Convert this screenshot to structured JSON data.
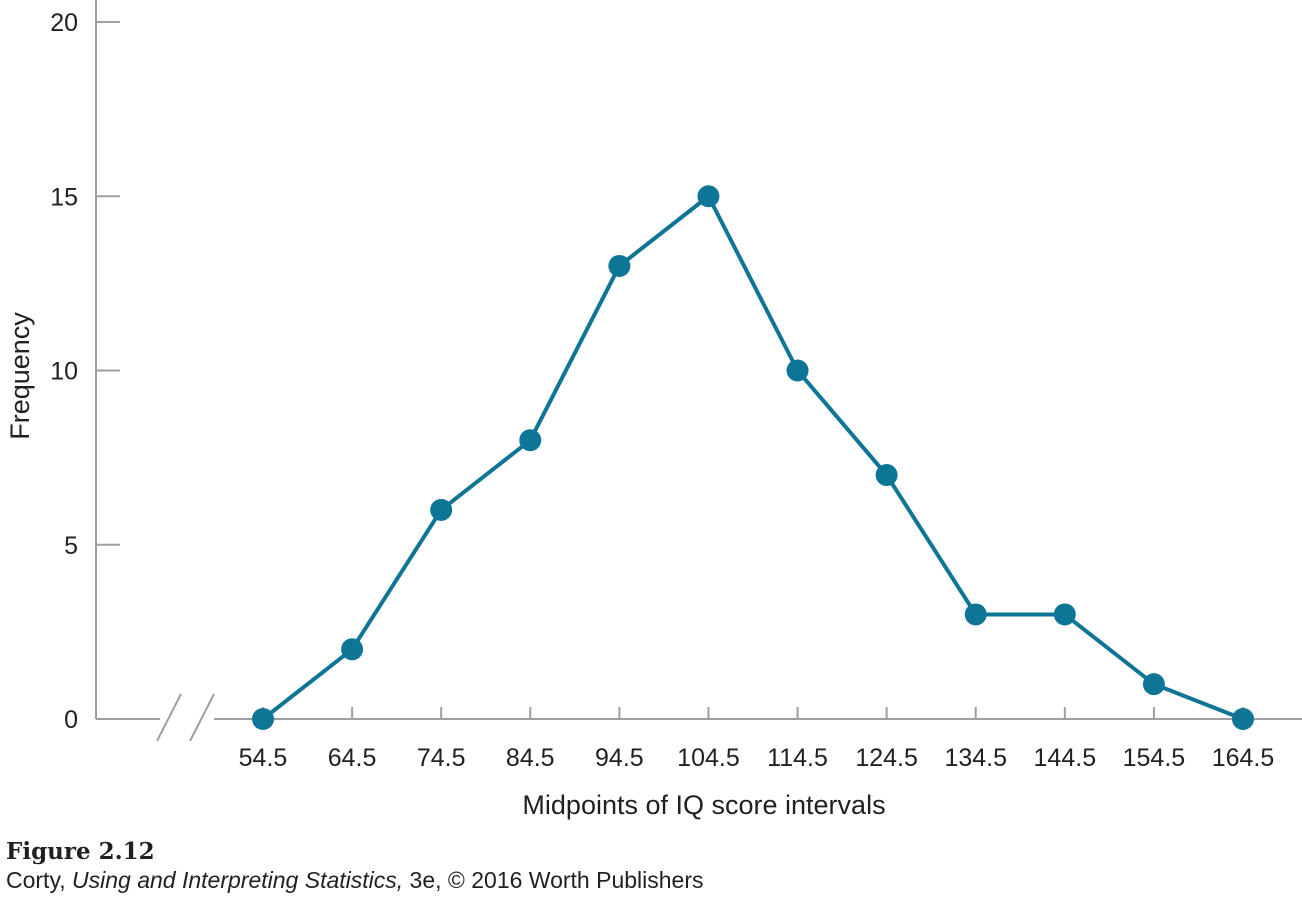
{
  "caption": {
    "figure_label": "Figure 2.12",
    "author": "Corty, ",
    "book_title": "Using and Interpreting Statistics,",
    "edition_publisher": " 3e, © 2016 Worth Publishers"
  },
  "colors": {
    "series": "#0f7596",
    "axis": "#9d9fa2",
    "text": "#231f20"
  },
  "chart_data": {
    "type": "line",
    "title": "",
    "xlabel": "Midpoints of IQ score intervals",
    "ylabel": "Frequency",
    "x": [
      54.5,
      64.5,
      74.5,
      84.5,
      94.5,
      104.5,
      114.5,
      124.5,
      134.5,
      144.5,
      154.5,
      164.5
    ],
    "x_tick_labels": [
      "54.5",
      "64.5",
      "74.5",
      "84.5",
      "94.5",
      "104.5",
      "114.5",
      "124.5",
      "134.5",
      "144.5",
      "154.5",
      "164.5"
    ],
    "y_ticks": [
      0,
      5,
      10,
      15,
      20
    ],
    "y_tick_labels": [
      "0",
      "5",
      "10",
      "15",
      "20"
    ],
    "ylim": [
      0,
      20
    ],
    "xlim": [
      54.5,
      164.5
    ],
    "x_axis_break": true,
    "grid": false,
    "series": [
      {
        "values": [
          0,
          2,
          6,
          8,
          13,
          15,
          10,
          7,
          3,
          3,
          1,
          0
        ]
      }
    ]
  }
}
